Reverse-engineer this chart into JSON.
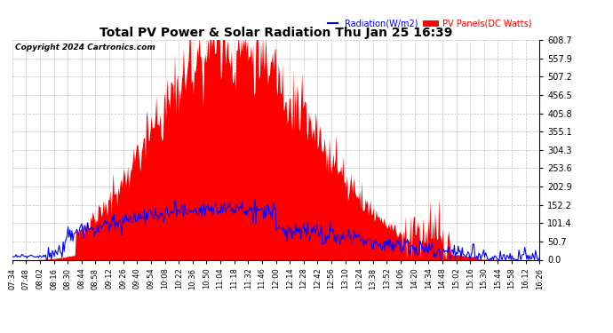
{
  "title": "Total PV Power & Solar Radiation Thu Jan 25 16:39",
  "copyright": "Copyright 2024 Cartronics.com",
  "legend_radiation": "Radiation(W/m2)",
  "legend_pv": "PV Panels(DC Watts)",
  "radiation_color": "blue",
  "pv_color": "red",
  "yticks": [
    0.0,
    50.7,
    101.4,
    152.2,
    202.9,
    253.6,
    304.3,
    355.1,
    405.8,
    456.5,
    507.2,
    557.9,
    608.7
  ],
  "ymax": 608.7,
  "ymin": 0.0,
  "xtick_labels": [
    "07:34",
    "07:48",
    "08:02",
    "08:16",
    "08:30",
    "08:44",
    "08:58",
    "09:12",
    "09:26",
    "09:40",
    "09:54",
    "10:08",
    "10:22",
    "10:36",
    "10:50",
    "11:04",
    "11:18",
    "11:32",
    "11:46",
    "12:00",
    "12:14",
    "12:28",
    "12:42",
    "12:56",
    "13:10",
    "13:24",
    "13:38",
    "13:52",
    "14:06",
    "14:20",
    "14:34",
    "14:48",
    "15:02",
    "15:16",
    "15:30",
    "15:44",
    "15:58",
    "16:12",
    "16:26"
  ],
  "background_color": "#ffffff",
  "grid_color": "#b0b0b0"
}
